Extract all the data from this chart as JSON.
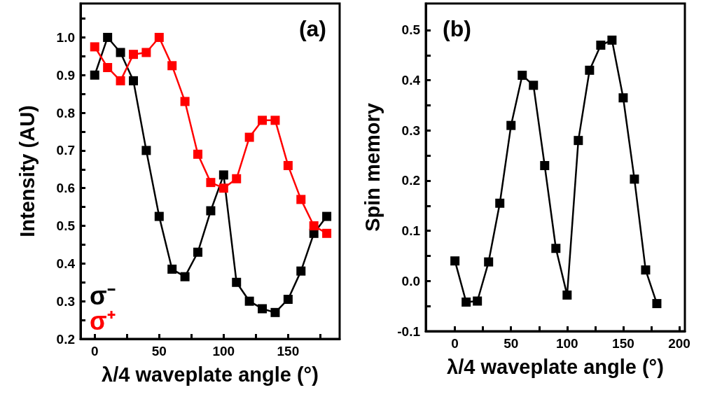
{
  "chart_data": [
    {
      "type": "line",
      "title": "(a)",
      "xlabel": "λ/4 waveplate angle (°)",
      "ylabel": "Intensity (AU)",
      "x": [
        0,
        10,
        20,
        30,
        40,
        50,
        60,
        70,
        80,
        90,
        100,
        110,
        120,
        130,
        140,
        150,
        160,
        170,
        180
      ],
      "series": [
        {
          "name": "σ⁻",
          "color": "#000000",
          "values": [
            0.9,
            1.0,
            0.96,
            0.885,
            0.7,
            0.525,
            0.385,
            0.365,
            0.43,
            0.54,
            0.635,
            0.35,
            0.3,
            0.28,
            0.27,
            0.305,
            0.38,
            0.48,
            0.525
          ]
        },
        {
          "name": "σ⁺",
          "color": "#ff0000",
          "values": [
            0.975,
            0.92,
            0.885,
            0.955,
            0.96,
            1.0,
            0.925,
            0.83,
            0.69,
            0.615,
            0.6,
            0.625,
            0.735,
            0.78,
            0.78,
            0.66,
            0.57,
            0.5,
            0.48
          ]
        }
      ],
      "xlim": [
        -11,
        190
      ],
      "xticks": [
        0,
        {
          "value": 25,
          "label": null
        },
        50,
        {
          "value": 75,
          "label": null
        },
        100,
        {
          "value": 125,
          "label": null
        },
        150,
        {
          "value": 175,
          "label": null
        }
      ],
      "ylim": [
        0.2,
        1.09
      ],
      "yticks": [
        0.2,
        {
          "value": 0.25,
          "label": null
        },
        0.3,
        {
          "value": 0.35,
          "label": null
        },
        0.4,
        {
          "value": 0.45,
          "label": null
        },
        0.5,
        {
          "value": 0.55,
          "label": null
        },
        0.6,
        {
          "value": 0.65,
          "label": null
        },
        0.7,
        {
          "value": 0.75,
          "label": null
        },
        0.8,
        {
          "value": 0.85,
          "label": null
        },
        0.9,
        {
          "value": 0.95,
          "label": null
        },
        {
          "value": 1.0,
          "label": "1.0"
        },
        {
          "value": 1.05,
          "label": null
        }
      ],
      "grid": false,
      "legend": "bottom left",
      "marker": "square",
      "line_style": "solid"
    },
    {
      "type": "line",
      "title": "(b)",
      "xlabel": "λ/4 waveplate angle (°)",
      "ylabel": "Spin memory",
      "x": [
        0,
        10,
        20,
        30,
        40,
        50,
        60,
        70,
        80,
        90,
        100,
        110,
        120,
        130,
        140,
        150,
        160,
        170,
        180
      ],
      "series": [
        {
          "color": "#000000",
          "values": [
            0.04,
            -0.042,
            -0.04,
            0.038,
            0.155,
            0.31,
            0.41,
            0.39,
            0.23,
            0.065,
            -0.028,
            0.28,
            0.42,
            0.47,
            0.48,
            0.365,
            0.203,
            0.022,
            -0.045
          ]
        }
      ],
      "xlim": [
        -26,
        205
      ],
      "xticks": [
        0,
        {
          "value": 25,
          "label": null
        },
        50,
        {
          "value": 75,
          "label": null
        },
        100,
        {
          "value": 125,
          "label": null
        },
        150,
        {
          "value": 175,
          "label": null
        },
        200
      ],
      "ylim": [
        -0.1,
        0.553
      ],
      "yticks": [
        -0.1,
        {
          "value": -0.05,
          "label": null
        },
        {
          "value": 0,
          "label": "0.0"
        },
        {
          "value": 0.05,
          "label": null
        },
        0.1,
        {
          "value": 0.15,
          "label": null
        },
        0.2,
        {
          "value": 0.25,
          "label": null
        },
        0.3,
        {
          "value": 0.35,
          "label": null
        },
        0.4,
        {
          "value": 0.45,
          "label": null
        },
        0.5
      ],
      "grid": false,
      "legend": false,
      "marker": "square",
      "line_style": "solid"
    }
  ]
}
